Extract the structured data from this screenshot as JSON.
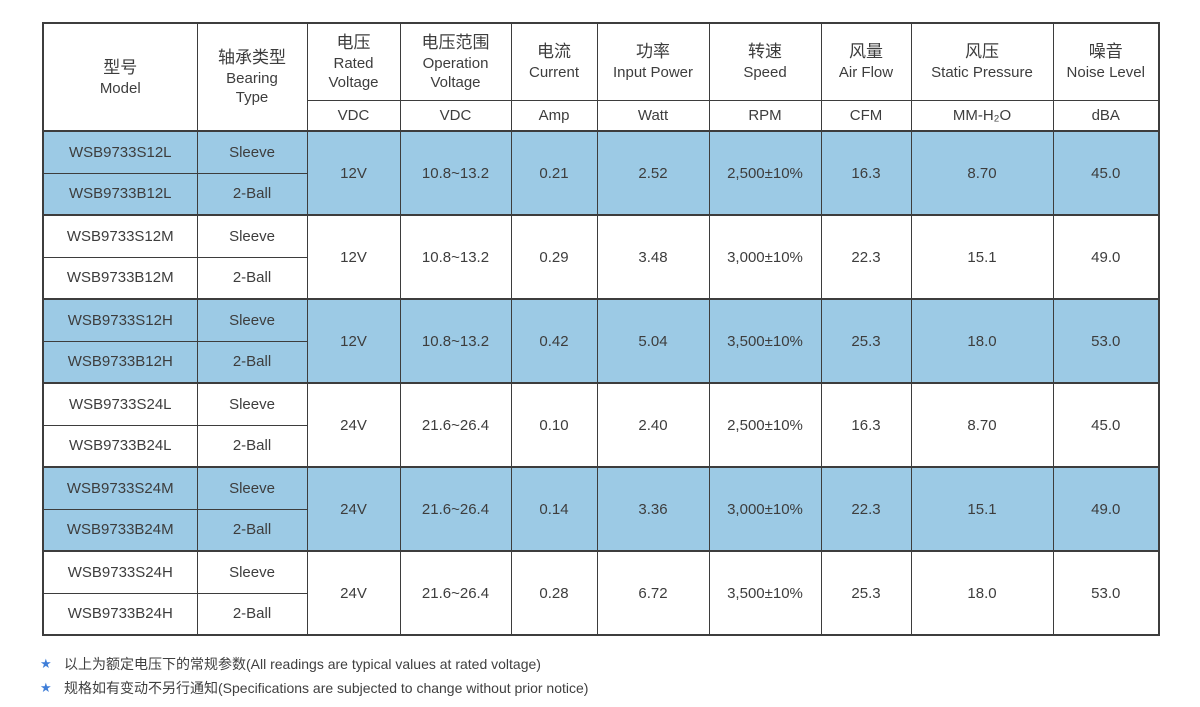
{
  "table": {
    "columns": [
      {
        "zh": "型号",
        "en": "Model",
        "unit": ""
      },
      {
        "zh": "轴承类型",
        "en": "Bearing Type",
        "unit": ""
      },
      {
        "zh": "电压",
        "en": "Rated Voltage",
        "unit": "VDC"
      },
      {
        "zh": "电压范围",
        "en": "Operation Voltage",
        "unit": "VDC"
      },
      {
        "zh": "电流",
        "en": "Current",
        "unit": "Amp"
      },
      {
        "zh": "功率",
        "en": "Input Power",
        "unit": "Watt"
      },
      {
        "zh": "转速",
        "en": "Speed",
        "unit": "RPM"
      },
      {
        "zh": "风量",
        "en": "Air Flow",
        "unit": "CFM"
      },
      {
        "zh": "风压",
        "en": "Static Pressure",
        "unit": "MM-H₂O"
      },
      {
        "zh": "噪音",
        "en": "Noise Level",
        "unit": "dBA"
      }
    ],
    "groups": [
      {
        "highlight": true,
        "rows": [
          {
            "model": "WSB9733S12L",
            "bearing": "Sleeve"
          },
          {
            "model": "WSB9733B12L",
            "bearing": "2-Ball"
          }
        ],
        "rated_voltage": "12V",
        "operation_voltage": "10.8~13.2",
        "current": "0.21",
        "power": "2.52",
        "speed": "2,500±10%",
        "air_flow": "16.3",
        "static_pressure": "8.70",
        "noise": "45.0"
      },
      {
        "highlight": false,
        "rows": [
          {
            "model": "WSB9733S12M",
            "bearing": "Sleeve"
          },
          {
            "model": "WSB9733B12M",
            "bearing": "2-Ball"
          }
        ],
        "rated_voltage": "12V",
        "operation_voltage": "10.8~13.2",
        "current": "0.29",
        "power": "3.48",
        "speed": "3,000±10%",
        "air_flow": "22.3",
        "static_pressure": "15.1",
        "noise": "49.0"
      },
      {
        "highlight": true,
        "rows": [
          {
            "model": "WSB9733S12H",
            "bearing": "Sleeve"
          },
          {
            "model": "WSB9733B12H",
            "bearing": "2-Ball"
          }
        ],
        "rated_voltage": "12V",
        "operation_voltage": "10.8~13.2",
        "current": "0.42",
        "power": "5.04",
        "speed": "3,500±10%",
        "air_flow": "25.3",
        "static_pressure": "18.0",
        "noise": "53.0"
      },
      {
        "highlight": false,
        "rows": [
          {
            "model": "WSB9733S24L",
            "bearing": "Sleeve"
          },
          {
            "model": "WSB9733B24L",
            "bearing": "2-Ball"
          }
        ],
        "rated_voltage": "24V",
        "operation_voltage": "21.6~26.4",
        "current": "0.10",
        "power": "2.40",
        "speed": "2,500±10%",
        "air_flow": "16.3",
        "static_pressure": "8.70",
        "noise": "45.0"
      },
      {
        "highlight": true,
        "rows": [
          {
            "model": "WSB9733S24M",
            "bearing": "Sleeve"
          },
          {
            "model": "WSB9733B24M",
            "bearing": "2-Ball"
          }
        ],
        "rated_voltage": "24V",
        "operation_voltage": "21.6~26.4",
        "current": "0.14",
        "power": "3.36",
        "speed": "3,000±10%",
        "air_flow": "22.3",
        "static_pressure": "15.1",
        "noise": "49.0"
      },
      {
        "highlight": false,
        "rows": [
          {
            "model": "WSB9733S24H",
            "bearing": "Sleeve"
          },
          {
            "model": "WSB9733B24H",
            "bearing": "2-Ball"
          }
        ],
        "rated_voltage": "24V",
        "operation_voltage": "21.6~26.4",
        "current": "0.28",
        "power": "6.72",
        "speed": "3,500±10%",
        "air_flow": "25.3",
        "static_pressure": "18.0",
        "noise": "53.0"
      }
    ]
  },
  "footnotes": [
    {
      "marker": "★",
      "text": "以上为额定电压下的常规参数(All readings are typical values at rated voltage)"
    },
    {
      "marker": "★",
      "text": "规格如有变动不另行通知(Specifications are subjected to change without prior notice)"
    }
  ],
  "colors": {
    "highlight_blue": "#9CCAE5",
    "border": "#3d3d3d",
    "text": "#3d3d3d",
    "star_blue": "#3F7ED8"
  }
}
